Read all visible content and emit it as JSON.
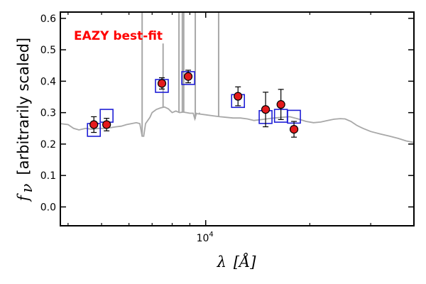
{
  "chart_data": {
    "type": "scatter",
    "annotation": "EAZY best-fit",
    "annotation_color": "#ff0000",
    "xlabel_symbol": "λ",
    "xlabel_unit": "[Å]",
    "ylabel_symbol": "f",
    "ylabel_sub": "ν",
    "ylabel_text": "[arbitrarily scaled]",
    "x_scale": "log",
    "xlim": [
      3800,
      40000
    ],
    "ylim": [
      -0.06,
      0.62
    ],
    "y_ticks": [
      "0.0",
      "0.1",
      "0.2",
      "0.3",
      "0.4",
      "0.5",
      "0.6"
    ],
    "x_tick_major": {
      "base": "10",
      "exp": "4",
      "value": 10000
    },
    "grid": false,
    "colors": {
      "observed_fill": "#e41a1c",
      "observed_edge": "#000000",
      "model_box": "#1f1fd6",
      "template_line": "#a8a8a8"
    },
    "series": [
      {
        "type": "line",
        "points": [
          [
            3800,
            0.265
          ],
          [
            4000,
            0.262
          ],
          [
            4150,
            0.25
          ],
          [
            4300,
            0.245
          ],
          [
            4500,
            0.25
          ],
          [
            4700,
            0.247
          ],
          [
            4900,
            0.25
          ],
          [
            5100,
            0.25
          ],
          [
            5300,
            0.252
          ],
          [
            5500,
            0.255
          ],
          [
            5700,
            0.257
          ],
          [
            5900,
            0.262
          ],
          [
            6100,
            0.265
          ],
          [
            6300,
            0.268
          ],
          [
            6450,
            0.265
          ],
          [
            6550,
            0.225
          ],
          [
            6620,
            0.225
          ],
          [
            6700,
            0.265
          ],
          [
            6800,
            0.275
          ],
          [
            6900,
            0.285
          ],
          [
            7000,
            0.3
          ],
          [
            7200,
            0.31
          ],
          [
            7400,
            0.315
          ],
          [
            7600,
            0.318
          ],
          [
            7800,
            0.312
          ],
          [
            8000,
            0.3
          ],
          [
            8200,
            0.305
          ],
          [
            8400,
            0.3
          ],
          [
            8600,
            0.302
          ],
          [
            8800,
            0.3
          ],
          [
            9000,
            0.298
          ],
          [
            9200,
            0.298
          ],
          [
            9300,
            0.28
          ],
          [
            9400,
            0.297
          ],
          [
            9700,
            0.295
          ],
          [
            10000,
            0.293
          ],
          [
            10500,
            0.29
          ],
          [
            11000,
            0.287
          ],
          [
            11500,
            0.285
          ],
          [
            12000,
            0.283
          ],
          [
            12600,
            0.283
          ],
          [
            13200,
            0.28
          ],
          [
            13800,
            0.275
          ],
          [
            14500,
            0.278
          ],
          [
            15500,
            0.282
          ],
          [
            16500,
            0.285
          ],
          [
            17500,
            0.287
          ],
          [
            18500,
            0.28
          ],
          [
            19500,
            0.272
          ],
          [
            20500,
            0.268
          ],
          [
            21500,
            0.27
          ],
          [
            22500,
            0.275
          ],
          [
            23500,
            0.279
          ],
          [
            24500,
            0.281
          ],
          [
            25300,
            0.28
          ],
          [
            26300,
            0.272
          ],
          [
            27300,
            0.26
          ],
          [
            28500,
            0.25
          ],
          [
            30000,
            0.24
          ],
          [
            32000,
            0.232
          ],
          [
            34000,
            0.225
          ],
          [
            36000,
            0.218
          ],
          [
            38000,
            0.21
          ],
          [
            40000,
            0.205
          ]
        ],
        "emission_lines": [
          [
            6550,
            0.62
          ],
          [
            7530,
            0.52
          ],
          [
            8370,
            0.62
          ],
          [
            8560,
            0.62
          ],
          [
            8640,
            0.62
          ],
          [
            9330,
            0.62
          ],
          [
            9390,
            0.3
          ],
          [
            9590,
            0.3
          ],
          [
            10900,
            0.62
          ]
        ]
      },
      {
        "type": "scatter",
        "points": [
          {
            "x": 4750,
            "y": 0.262,
            "err": 0.025
          },
          {
            "x": 5170,
            "y": 0.262,
            "err": 0.02
          },
          {
            "x": 7470,
            "y": 0.393,
            "err": 0.018
          },
          {
            "x": 8900,
            "y": 0.415,
            "err": 0.02
          },
          {
            "x": 12400,
            "y": 0.352,
            "err": 0.03
          },
          {
            "x": 14900,
            "y": 0.31,
            "err": 0.055
          },
          {
            "x": 16500,
            "y": 0.326,
            "err": 0.048
          },
          {
            "x": 18000,
            "y": 0.247,
            "err": 0.025
          }
        ]
      },
      {
        "type": "scatter",
        "marker": "square",
        "points": [
          {
            "x": 4750,
            "y": 0.245
          },
          {
            "x": 5170,
            "y": 0.29
          },
          {
            "x": 7470,
            "y": 0.385
          },
          {
            "x": 8900,
            "y": 0.41
          },
          {
            "x": 12400,
            "y": 0.337
          },
          {
            "x": 14900,
            "y": 0.286
          },
          {
            "x": 16500,
            "y": 0.29
          },
          {
            "x": 18000,
            "y": 0.287
          }
        ]
      }
    ]
  }
}
